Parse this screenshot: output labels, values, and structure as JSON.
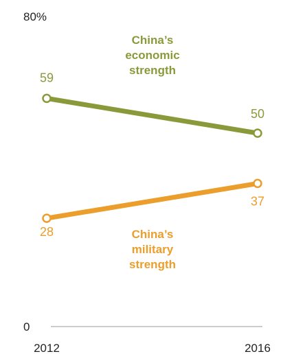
{
  "chart_data": {
    "type": "line",
    "x": [
      "2012",
      "2016"
    ],
    "ylim": [
      0,
      80
    ],
    "y_tick_labels": [
      "80%",
      "0"
    ],
    "series": [
      {
        "label_lines": [
          "China’s",
          "economic",
          "strength"
        ],
        "values": [
          59,
          50
        ],
        "value_labels": [
          "59",
          "50"
        ],
        "color": "#8a9a3b"
      },
      {
        "label_lines": [
          "China’s",
          "military",
          "strength"
        ],
        "values": [
          28,
          37
        ],
        "value_labels": [
          "28",
          "37"
        ],
        "color": "#eb9e2c"
      }
    ],
    "grid": false,
    "legend": "inline labels"
  }
}
